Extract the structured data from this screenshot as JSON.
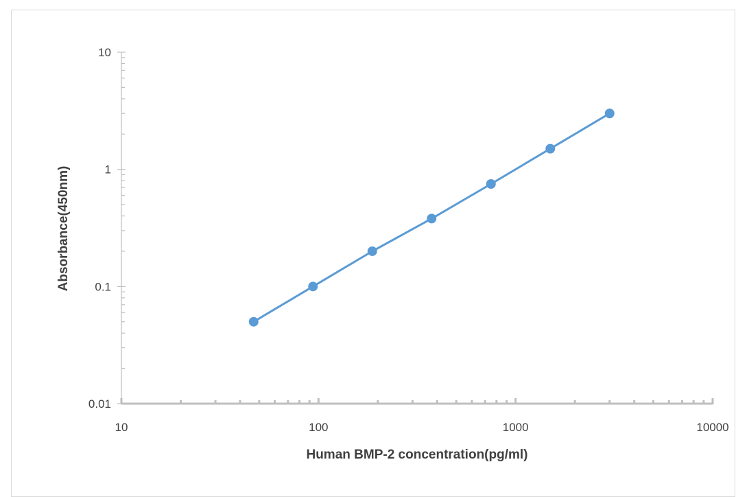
{
  "chart_data": {
    "type": "scatter",
    "title": "",
    "xlabel": "Human BMP-2 concentration(pg/ml)",
    "ylabel": "Absorbance(450nm)",
    "x_scale": "log",
    "y_scale": "log",
    "xlim": [
      10,
      10000
    ],
    "ylim": [
      0.01,
      10
    ],
    "x_tick_labels": [
      "10",
      "100",
      "1000",
      "10000"
    ],
    "y_tick_labels": [
      "0.01",
      "0.1",
      "1",
      "10"
    ],
    "grid": false,
    "legend": "none",
    "series": [
      {
        "color": "#5b9bd5",
        "line": true,
        "marker": "circle",
        "x": [
          46.875,
          93.75,
          187.5,
          375,
          750,
          1500,
          3000
        ],
        "y": [
          0.05,
          0.1,
          0.2,
          0.38,
          0.75,
          1.5,
          3.0
        ]
      }
    ],
    "axis_color": "#bfbfbf",
    "text_color": "#404040"
  }
}
